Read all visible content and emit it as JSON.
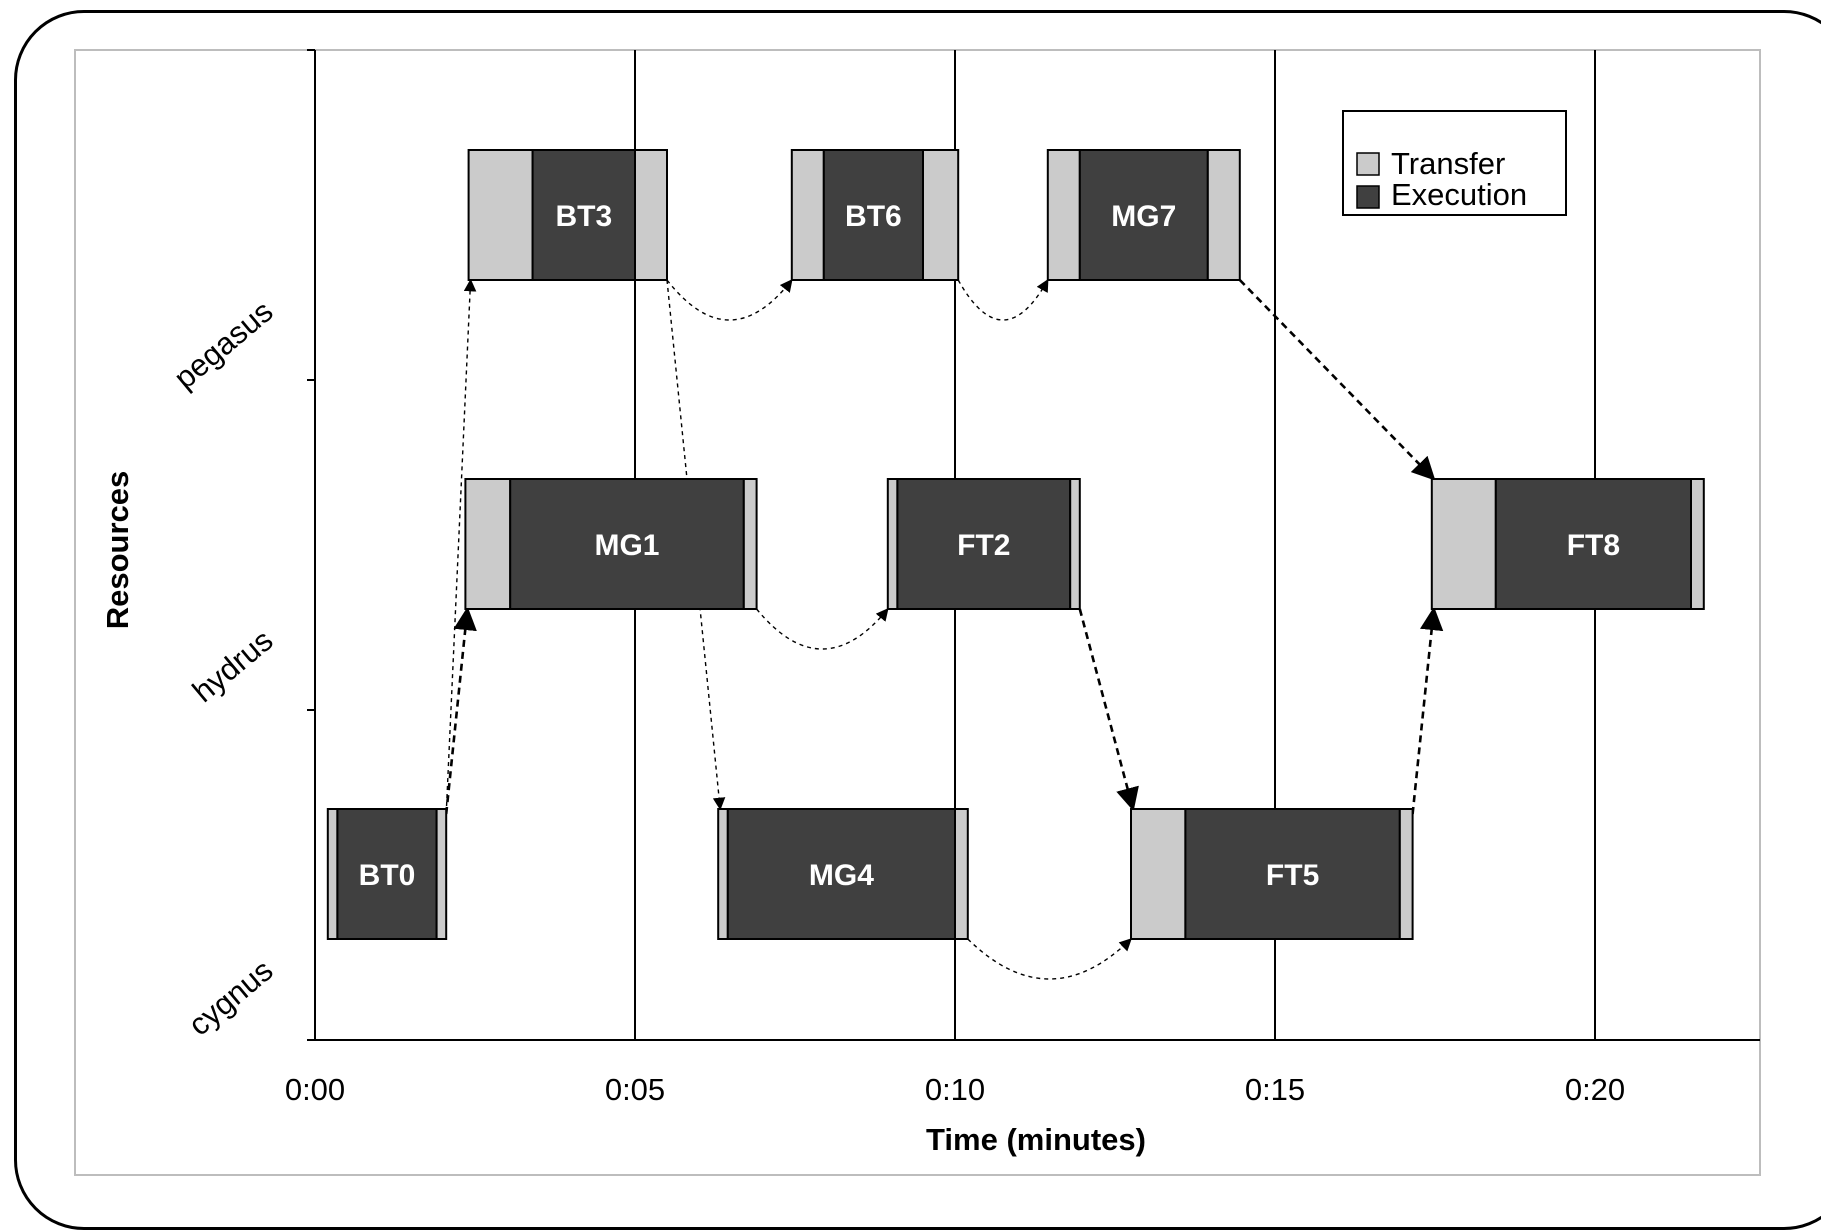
{
  "chart_data": {
    "type": "gantt",
    "xlabel": "Time (minutes)",
    "ylabel": "Resources",
    "x_ticks": [
      "0:00",
      "0:05",
      "0:10",
      "0:15",
      "0:20"
    ],
    "xlim": [
      0,
      22.5
    ],
    "resources": [
      "pegasus",
      "hydrus",
      "cygnus"
    ],
    "legend": [
      {
        "name": "Transfer",
        "color": "#cbcbcb"
      },
      {
        "name": "Execution",
        "color": "#404040"
      }
    ],
    "legend_position": "top-right",
    "grid": true,
    "tasks": [
      {
        "label": "BT0",
        "resource": "cygnus",
        "start": 0.2,
        "transfer_end": 0.35,
        "exec_end": 1.9,
        "end": 2.05
      },
      {
        "label": "MG1",
        "resource": "hydrus",
        "start": 2.35,
        "transfer_end": 3.05,
        "exec_end": 6.7,
        "end": 6.9
      },
      {
        "label": "BT3",
        "resource": "pegasus",
        "start": 2.4,
        "transfer_end": 3.4,
        "exec_end": 5.0,
        "end": 5.5
      },
      {
        "label": "MG4",
        "resource": "cygnus",
        "start": 6.3,
        "transfer_end": 6.45,
        "exec_end": 10.0,
        "end": 10.2
      },
      {
        "label": "BT6",
        "resource": "pegasus",
        "start": 7.45,
        "transfer_end": 7.95,
        "exec_end": 9.5,
        "end": 10.05
      },
      {
        "label": "FT2",
        "resource": "hydrus",
        "start": 8.95,
        "transfer_end": 9.1,
        "exec_end": 11.8,
        "end": 11.95
      },
      {
        "label": "MG7",
        "resource": "pegasus",
        "start": 11.45,
        "transfer_end": 11.95,
        "exec_end": 13.95,
        "end": 14.45
      },
      {
        "label": "FT5",
        "resource": "cygnus",
        "start": 12.75,
        "transfer_end": 13.6,
        "exec_end": 16.95,
        "end": 17.15
      },
      {
        "label": "FT8",
        "resource": "hydrus",
        "start": 17.45,
        "transfer_end": 18.45,
        "exec_end": 21.5,
        "end": 21.7
      }
    ],
    "dependencies": [
      {
        "from": "BT0",
        "to": "BT3"
      },
      {
        "from": "BT0",
        "to": "MG1"
      },
      {
        "from": "BT3",
        "to": "BT6"
      },
      {
        "from": "BT3",
        "to": "MG4"
      },
      {
        "from": "BT6",
        "to": "MG7"
      },
      {
        "from": "MG1",
        "to": "FT2"
      },
      {
        "from": "MG4",
        "to": "FT5"
      },
      {
        "from": "FT2",
        "to": "FT5"
      },
      {
        "from": "MG7",
        "to": "FT8"
      },
      {
        "from": "FT5",
        "to": "FT8"
      }
    ]
  }
}
